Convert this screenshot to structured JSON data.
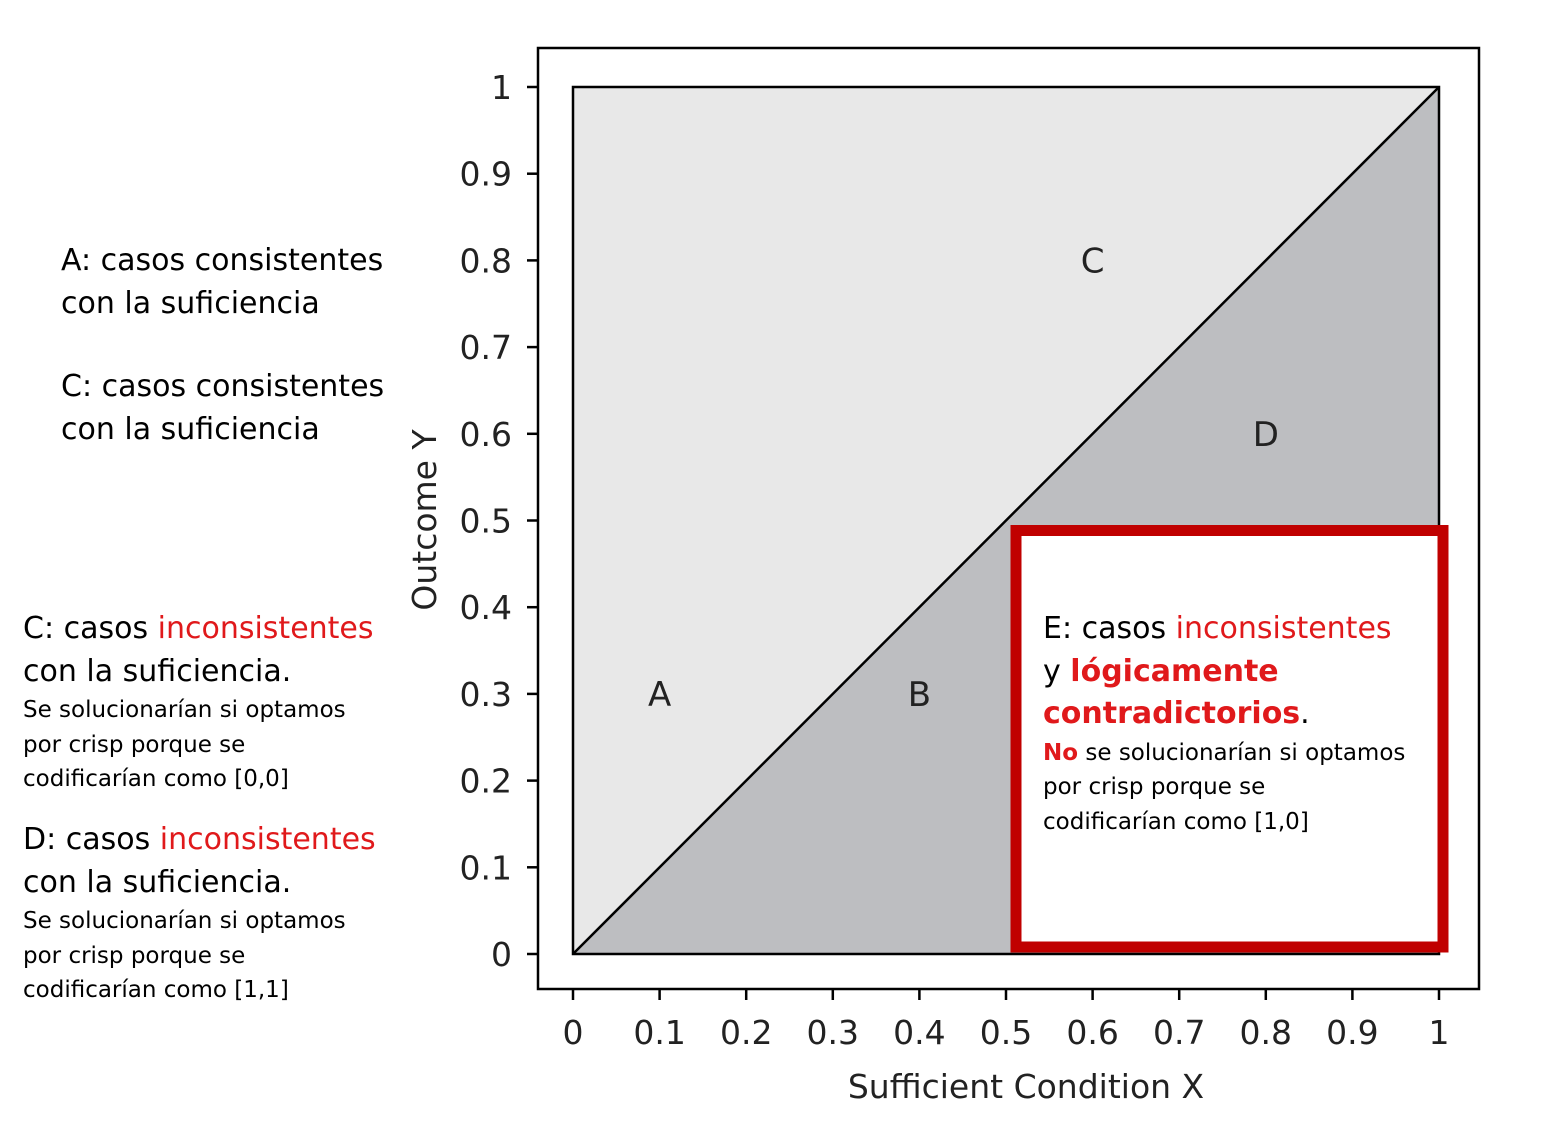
{
  "chart_data": {
    "type": "area",
    "title": "",
    "xlabel": "Sufficient Condition X",
    "ylabel": "Outcome Y",
    "xlim": [
      0,
      1
    ],
    "ylim": [
      0,
      1
    ],
    "x_ticks": [
      "0",
      "0.1",
      "0.2",
      "0.3",
      "0.4",
      "0.5",
      "0.6",
      "0.7",
      "0.8",
      "0.9",
      "1"
    ],
    "y_ticks": [
      "0",
      "0.1",
      "0.2",
      "0.3",
      "0.4",
      "0.5",
      "0.6",
      "0.7",
      "0.8",
      "0.9",
      "1"
    ],
    "diagonal": [
      [
        0,
        0
      ],
      [
        1,
        1
      ]
    ],
    "grid": false,
    "regions": [
      {
        "label": "A",
        "x": 0.1,
        "y": 0.3
      },
      {
        "label": "B",
        "x": 0.4,
        "y": 0.3
      },
      {
        "label": "C",
        "x": 0.6,
        "y": 0.8
      },
      {
        "label": "D",
        "x": 0.8,
        "y": 0.6
      }
    ],
    "highlight_box": {
      "x": [
        0.5,
        1
      ],
      "y": [
        0,
        0.5
      ]
    },
    "colors": {
      "upper_region": "#e8e8e8",
      "lower_region": "#bdbec1",
      "highlight": "#c00000",
      "accent_text": "#e0191b"
    }
  },
  "notes": {
    "a": {
      "line1": "A: casos consistentes",
      "line2": "con la suficiencia"
    },
    "c1": {
      "line1": "C: casos consistentes",
      "line2": "con la suficiencia"
    },
    "c2": {
      "prefix": "C: casos ",
      "highlight": "inconsistentes",
      "line2": "con la suficiencia.",
      "detail1": "Se solucionarían si optamos",
      "detail2": "por crisp porque se",
      "detail3": "codificarían como [0,0]"
    },
    "d": {
      "prefix": "D: casos ",
      "highlight": "inconsistentes",
      "line2": "con la suficiencia.",
      "detail1": "Se solucionarían si optamos",
      "detail2": "por crisp porque se",
      "detail3": "codificarían como [1,1]"
    },
    "e": {
      "prefix": "E: casos ",
      "highlight": "inconsistentes",
      "line2_prefix": "y ",
      "line2_bold": "lógicamente",
      "line3_bold": "contradictorios",
      "line3_end": ".",
      "detail1_bold": "No",
      "detail1": " se solucionarían si optamos",
      "detail2": "por crisp porque se",
      "detail3": "codificarían como [1,0]"
    }
  }
}
